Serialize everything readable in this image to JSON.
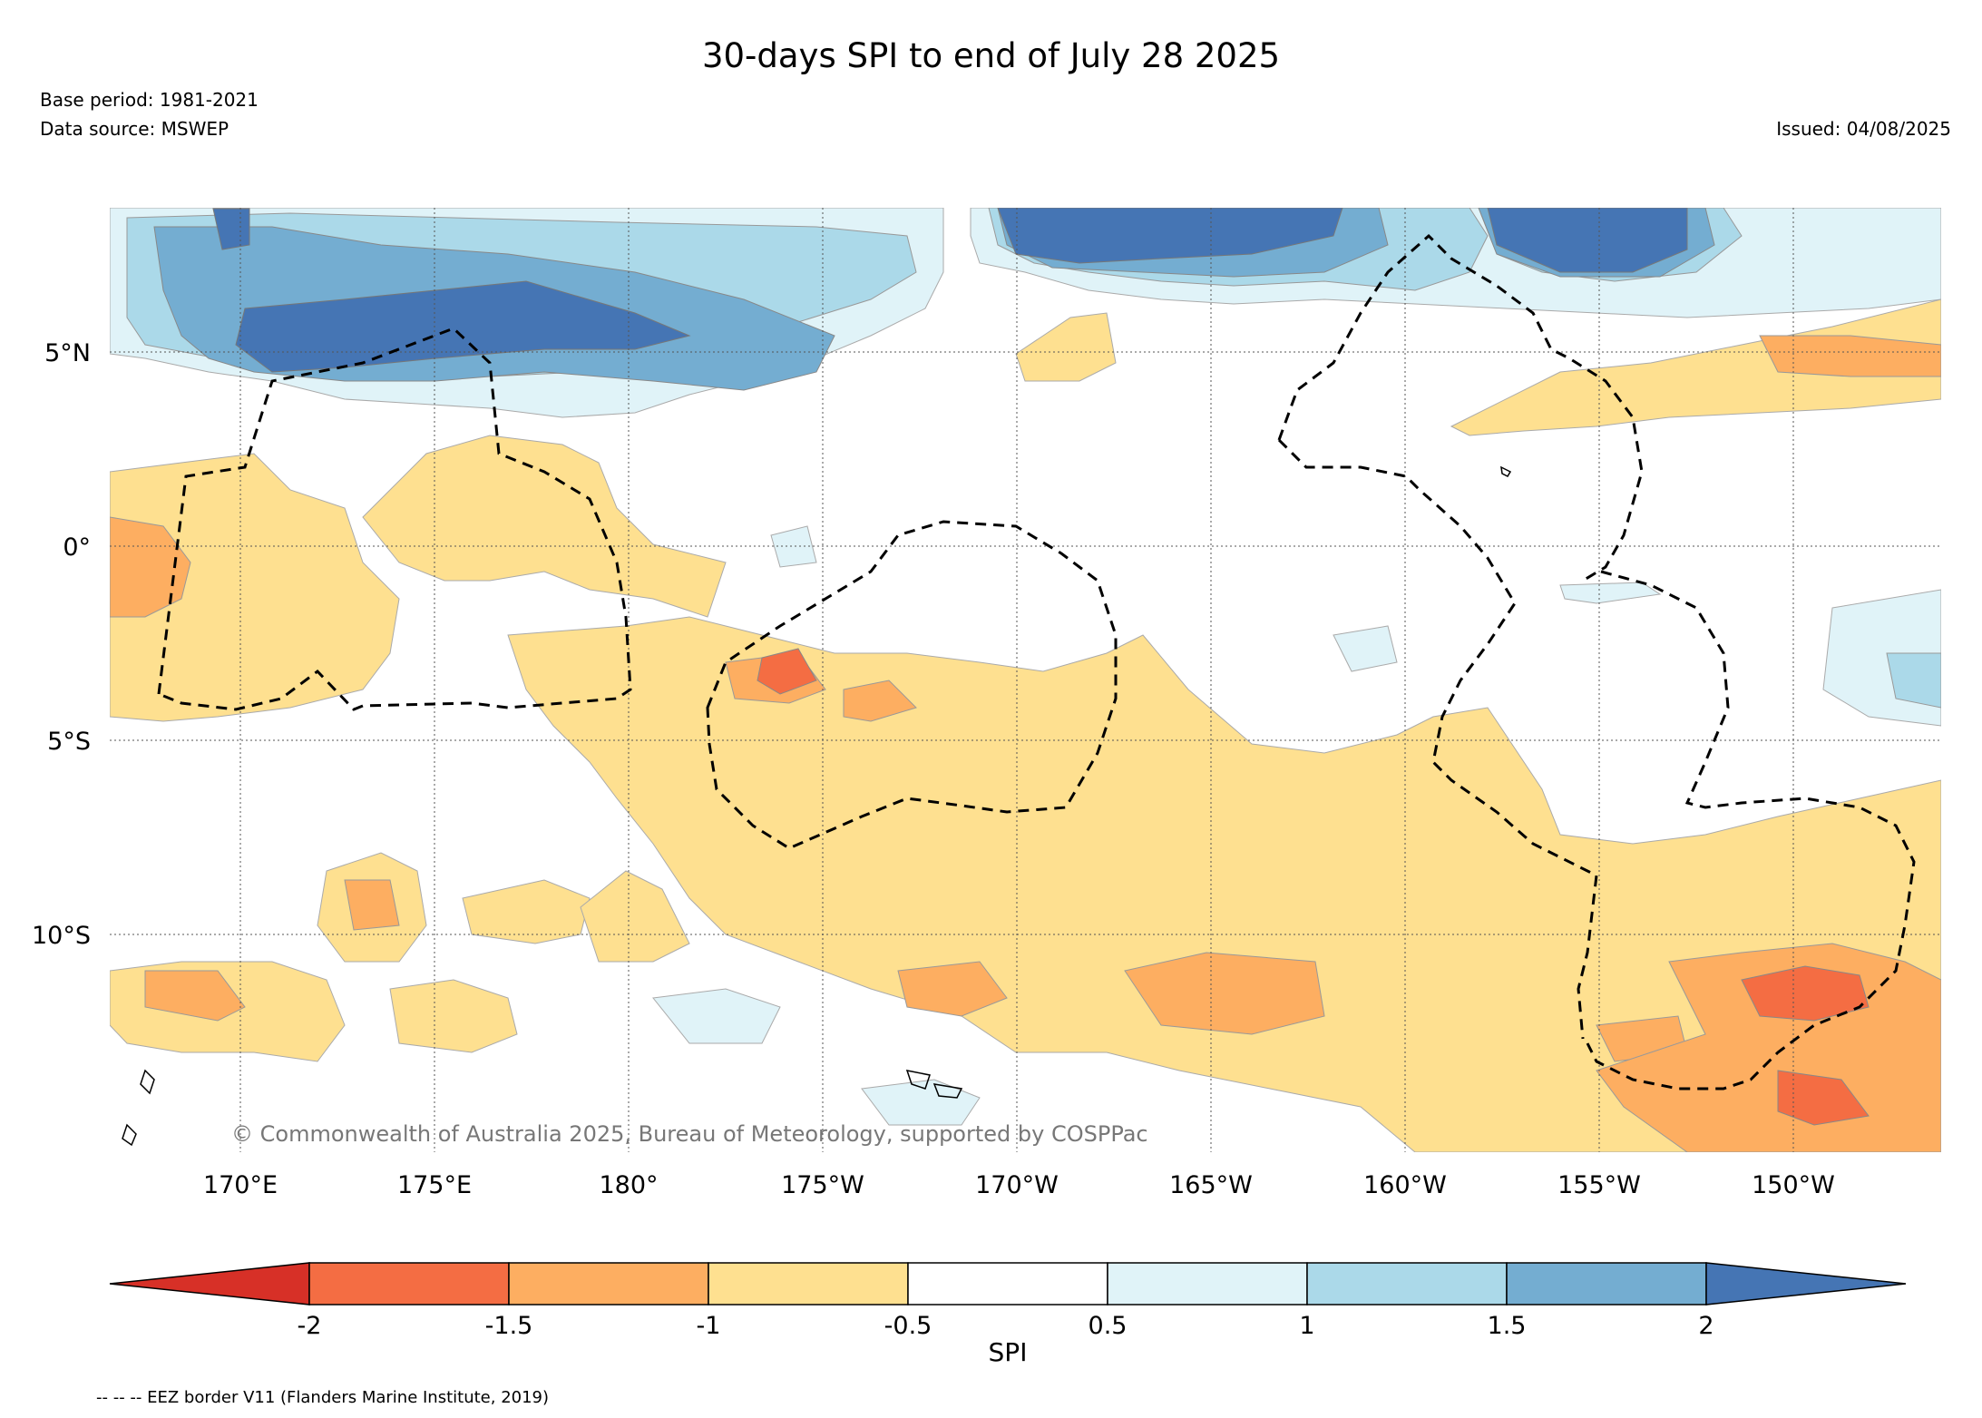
{
  "title": "30-days SPI to end of July 28 2025",
  "base_period": "Base period: 1981-2021",
  "data_source": "Data source: MSWEP",
  "issued": "Issued: 04/08/2025",
  "copyright": "© Commonwealth of Australia 2025, Bureau of Meteorology, supported by COSPPac",
  "eez_note": "-- -- -- EEZ border V11 (Flanders Marine Institute, 2019)",
  "map": {
    "lat_labels": [
      "5°N",
      "0°",
      "5°S",
      "10°S"
    ],
    "lon_labels": [
      "170°E",
      "175°E",
      "180°",
      "175°W",
      "170°W",
      "165°W",
      "160°W",
      "155°W",
      "150°W"
    ]
  },
  "colorbar": {
    "title": "SPI",
    "ticks": [
      "-2",
      "-1.5",
      "-1",
      "-0.5",
      "0.5",
      "1",
      "1.5",
      "2"
    ],
    "colors": [
      "#d73027",
      "#f46d43",
      "#fdae61",
      "#fee090",
      "#ffffff",
      "#e0f3f8",
      "#abd9e9",
      "#74add1",
      "#4575b4"
    ]
  },
  "colors": {
    "eez_border": "#000000",
    "grid": "#555555"
  }
}
